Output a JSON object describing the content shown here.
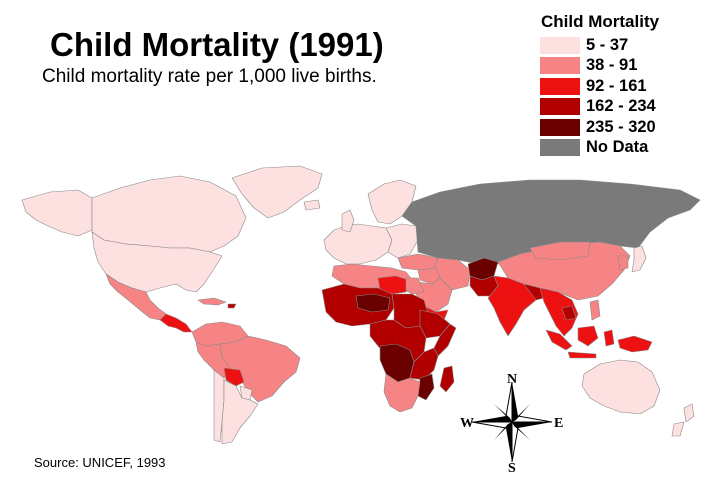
{
  "title": "Child Mortality (1991)",
  "subtitle": "Child mortality rate per 1,000 live births.",
  "legend": {
    "title": "Child Mortality",
    "items": [
      {
        "label": "5 - 37",
        "color": "#fde0e0"
      },
      {
        "label": "38 - 91",
        "color": "#f68484"
      },
      {
        "label": "92 - 161",
        "color": "#ee1111"
      },
      {
        "label": "162 - 234",
        "color": "#b20000"
      },
      {
        "label": "235 - 320",
        "color": "#6a0000"
      },
      {
        "label": "No Data",
        "color": "#7a7a7a"
      }
    ]
  },
  "source": "Source: UNICEF, 1993",
  "compass": {
    "n": "N",
    "s": "S",
    "e": "E",
    "w": "W"
  },
  "map_colors": {
    "border": "#8a8a8a",
    "background": "#ffffff"
  }
}
